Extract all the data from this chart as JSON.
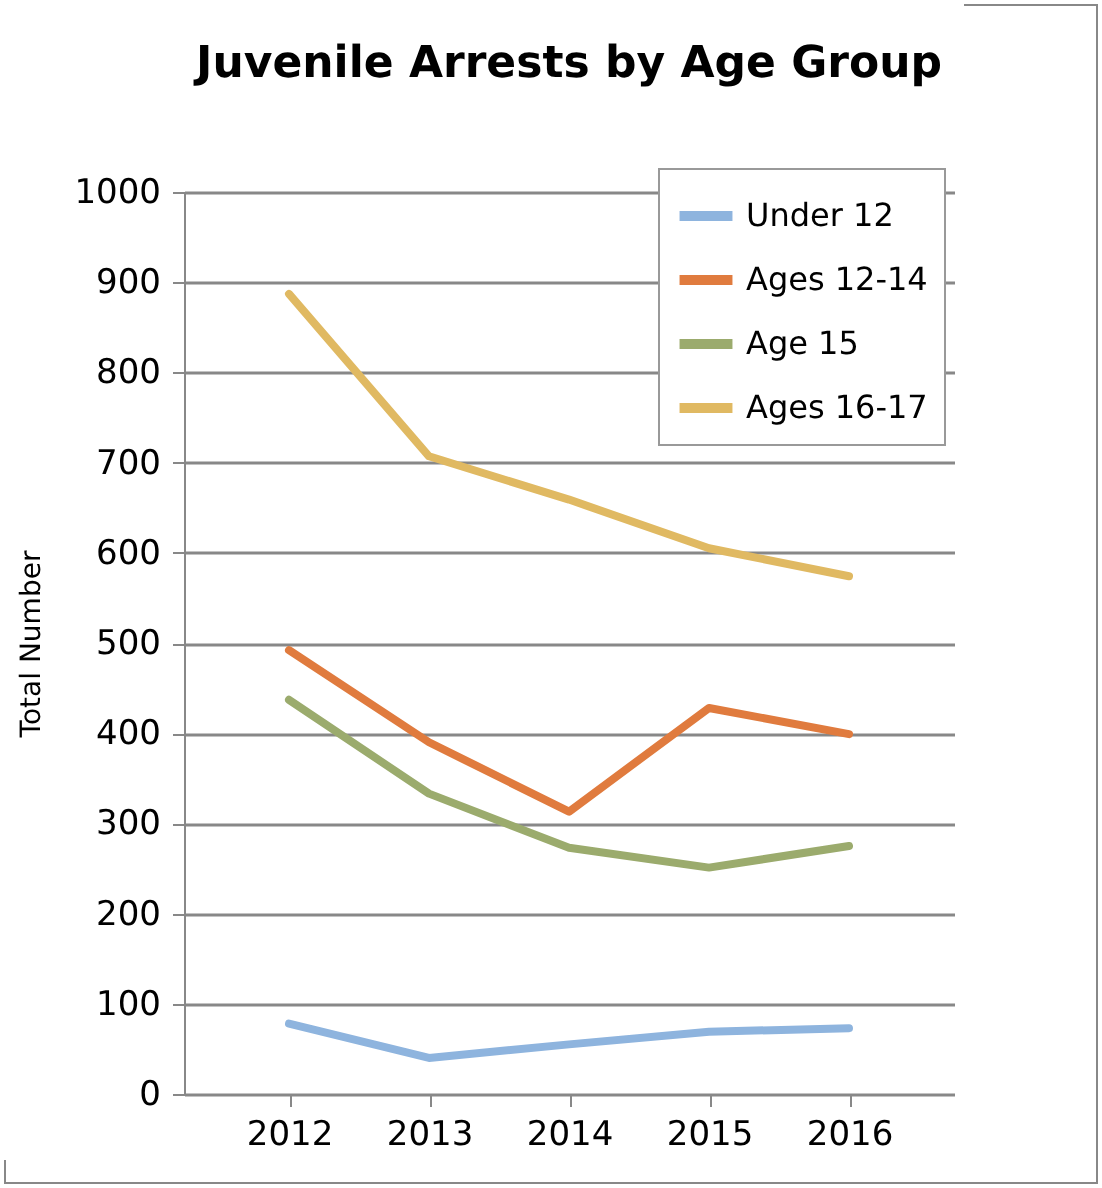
{
  "chart_data": {
    "type": "line",
    "title": "Juvenile Arrests by Age Group",
    "ylabel": "Total Number",
    "categories": [
      "2012",
      "2013",
      "2014",
      "2015",
      "2016"
    ],
    "series": [
      {
        "name": "Under 12",
        "color": "#8eb4de",
        "values": [
          78,
          40,
          55,
          69,
          73
        ]
      },
      {
        "name": "Ages 12-14",
        "color": "#e07b3e",
        "values": [
          492,
          390,
          313,
          428,
          399
        ]
      },
      {
        "name": "Age 15",
        "color": "#9bab6d",
        "values": [
          437,
          333,
          273,
          251,
          275
        ]
      },
      {
        "name": "Ages 16-17",
        "color": "#e0b962",
        "values": [
          887,
          707,
          659,
          605,
          574
        ]
      }
    ],
    "ylim": [
      0,
      1000
    ],
    "yticks": [
      0,
      100,
      200,
      300,
      400,
      500,
      600,
      700,
      800,
      900,
      1000
    ],
    "grid": "y",
    "legend": "top right",
    "marker": "none",
    "line_style": "solid"
  }
}
